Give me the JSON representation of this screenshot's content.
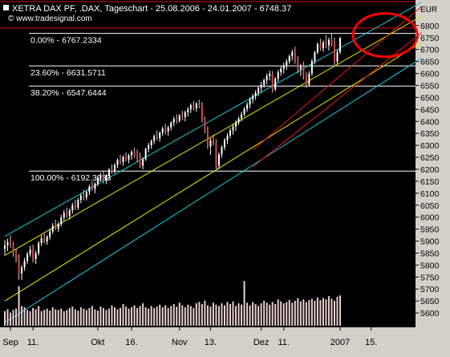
{
  "header": {
    "title": "XETRA DAX PF, .DAX, Tageschart - 25.08.2006 - 24.01.2007 - 6748.37",
    "source": "© www.tradesignal.com",
    "currency": "EUR"
  },
  "chart_data": {
    "type": "candlestick",
    "title": "XETRA DAX PF, .DAX, Tageschart - 25.08.2006 - 24.01.2007 - 6748.37",
    "ylabel": "EUR",
    "ylim": [
      5540,
      6900
    ],
    "y_ticks": [
      5600,
      5650,
      5700,
      5750,
      5800,
      5850,
      5900,
      5950,
      6000,
      6050,
      6100,
      6150,
      6200,
      6250,
      6300,
      6350,
      6400,
      6450,
      6500,
      6550,
      6600,
      6650,
      6700,
      6750,
      6800
    ],
    "x_tick_labels": [
      {
        "label": "Sep",
        "day": 2
      },
      {
        "label": "11.",
        "day": 10
      },
      {
        "label": "Okt",
        "day": 33
      },
      {
        "label": "16.",
        "day": 45
      },
      {
        "label": "Nov",
        "day": 62
      },
      {
        "label": "13.",
        "day": 73
      },
      {
        "label": "Dez",
        "day": 91
      },
      {
        "label": "11.",
        "day": 99
      },
      {
        "label": "2007",
        "day": 119
      },
      {
        "label": "15.",
        "day": 130
      }
    ],
    "fibonacci_levels": [
      {
        "label": "0.00% - 6767.2334",
        "value": 6767.2334
      },
      {
        "label": "23.60% - 6631.5711",
        "value": 6631.5711
      },
      {
        "label": "38.20% - 6547.6444",
        "value": 6547.6444
      },
      {
        "label": "100.00% - 6192.3933",
        "value": 6192.3933
      }
    ],
    "horizontal_lines": [
      6900,
      6790
    ],
    "channels": {
      "outer_cyan": [
        {
          "from": [
            0,
            5920
          ],
          "to": [
            148,
            6898
          ]
        },
        {
          "from": [
            0,
            5560
          ],
          "to": [
            148,
            6665
          ]
        }
      ],
      "inner_yellow": [
        {
          "from": [
            0,
            5840
          ],
          "to": [
            148,
            6840
          ]
        },
        {
          "from": [
            0,
            5650
          ],
          "to": [
            148,
            6730
          ]
        }
      ],
      "red_channel": [
        {
          "from": [
            88,
            6280
          ],
          "to": [
            148,
            6880
          ]
        },
        {
          "from": [
            88,
            6210
          ],
          "to": [
            148,
            6770
          ]
        }
      ]
    },
    "highlight_ellipse": {
      "center": [
        135,
        6760
      ],
      "label": ""
    },
    "candles_ohlc": [
      [
        5868,
        5904,
        5840,
        5882
      ],
      [
        5882,
        5910,
        5858,
        5895
      ],
      [
        5895,
        5925,
        5872,
        5884
      ],
      [
        5884,
        5898,
        5835,
        5848
      ],
      [
        5848,
        5866,
        5810,
        5822
      ],
      [
        5822,
        5845,
        5740,
        5765
      ],
      [
        5765,
        5800,
        5738,
        5790
      ],
      [
        5790,
        5830,
        5776,
        5818
      ],
      [
        5818,
        5855,
        5804,
        5846
      ],
      [
        5846,
        5880,
        5835,
        5865
      ],
      [
        5865,
        5885,
        5810,
        5825
      ],
      [
        5825,
        5860,
        5805,
        5850
      ],
      [
        5850,
        5900,
        5840,
        5892
      ],
      [
        5892,
        5925,
        5880,
        5912
      ],
      [
        5912,
        5935,
        5890,
        5898
      ],
      [
        5898,
        5925,
        5884,
        5918
      ],
      [
        5918,
        5952,
        5906,
        5940
      ],
      [
        5940,
        5975,
        5930,
        5965
      ],
      [
        5965,
        5990,
        5945,
        5952
      ],
      [
        5952,
        5980,
        5938,
        5972
      ],
      [
        5972,
        6010,
        5960,
        5998
      ],
      [
        5998,
        6030,
        5985,
        6018
      ],
      [
        6018,
        6040,
        5998,
        6005
      ],
      [
        6005,
        6035,
        5990,
        6028
      ],
      [
        6028,
        6060,
        6015,
        6050
      ],
      [
        6050,
        6072,
        6030,
        6040
      ],
      [
        6040,
        6080,
        6030,
        6072
      ],
      [
        6072,
        6100,
        6058,
        6090
      ],
      [
        6090,
        6115,
        6070,
        6082
      ],
      [
        6082,
        6112,
        6070,
        6105
      ],
      [
        6105,
        6135,
        6092,
        6128
      ],
      [
        6128,
        6150,
        6110,
        6118
      ],
      [
        6118,
        6145,
        6100,
        6140
      ],
      [
        6140,
        6172,
        6130,
        6165
      ],
      [
        6165,
        6185,
        6150,
        6175
      ],
      [
        6175,
        6195,
        6140,
        6152
      ],
      [
        6152,
        6180,
        6138,
        6172
      ],
      [
        6172,
        6205,
        6160,
        6198
      ],
      [
        6198,
        6220,
        6180,
        6190
      ],
      [
        6190,
        6225,
        6182,
        6218
      ],
      [
        6218,
        6245,
        6205,
        6238
      ],
      [
        6238,
        6260,
        6220,
        6230
      ],
      [
        6230,
        6258,
        6215,
        6252
      ],
      [
        6252,
        6270,
        6232,
        6240
      ],
      [
        6240,
        6265,
        6225,
        6258
      ],
      [
        6258,
        6280,
        6240,
        6272
      ],
      [
        6272,
        6290,
        6248,
        6255
      ],
      [
        6255,
        6282,
        6230,
        6245
      ],
      [
        6245,
        6270,
        6205,
        6215
      ],
      [
        6215,
        6250,
        6200,
        6242
      ],
      [
        6242,
        6290,
        6235,
        6285
      ],
      [
        6285,
        6310,
        6270,
        6300
      ],
      [
        6300,
        6325,
        6285,
        6318
      ],
      [
        6318,
        6345,
        6305,
        6338
      ],
      [
        6338,
        6362,
        6320,
        6330
      ],
      [
        6330,
        6358,
        6315,
        6352
      ],
      [
        6352,
        6378,
        6340,
        6370
      ],
      [
        6370,
        6390,
        6345,
        6358
      ],
      [
        6358,
        6382,
        6340,
        6375
      ],
      [
        6375,
        6400,
        6362,
        6395
      ],
      [
        6395,
        6420,
        6380,
        6410
      ],
      [
        6410,
        6430,
        6390,
        6402
      ],
      [
        6402,
        6430,
        6395,
        6425
      ],
      [
        6425,
        6445,
        6405,
        6418
      ],
      [
        6418,
        6445,
        6400,
        6438
      ],
      [
        6438,
        6460,
        6420,
        6450
      ],
      [
        6450,
        6475,
        6435,
        6468
      ],
      [
        6468,
        6485,
        6445,
        6455
      ],
      [
        6455,
        6480,
        6440,
        6475
      ],
      [
        6475,
        6490,
        6455,
        6465
      ],
      [
        6465,
        6480,
        6395,
        6405
      ],
      [
        6405,
        6420,
        6350,
        6362
      ],
      [
        6362,
        6380,
        6285,
        6295
      ],
      [
        6295,
        6330,
        6260,
        6320
      ],
      [
        6320,
        6345,
        6300,
        6310
      ],
      [
        6310,
        6325,
        6200,
        6215
      ],
      [
        6215,
        6270,
        6200,
        6262
      ],
      [
        6262,
        6300,
        6248,
        6292
      ],
      [
        6292,
        6330,
        6280,
        6322
      ],
      [
        6322,
        6350,
        6305,
        6340
      ],
      [
        6340,
        6372,
        6330,
        6362
      ],
      [
        6362,
        6390,
        6345,
        6378
      ],
      [
        6378,
        6405,
        6360,
        6395
      ],
      [
        6395,
        6420,
        6385,
        6412
      ],
      [
        6412,
        6440,
        6400,
        6430
      ],
      [
        6430,
        6460,
        6420,
        6452
      ],
      [
        6452,
        6480,
        6440,
        6470
      ],
      [
        6470,
        6500,
        6455,
        6492
      ],
      [
        6492,
        6515,
        6475,
        6505
      ],
      [
        6505,
        6530,
        6490,
        6520
      ],
      [
        6520,
        6548,
        6505,
        6540
      ],
      [
        6540,
        6565,
        6520,
        6552
      ],
      [
        6552,
        6580,
        6540,
        6572
      ],
      [
        6572,
        6600,
        6555,
        6590
      ],
      [
        6590,
        6612,
        6570,
        6598
      ],
      [
        6598,
        6610,
        6520,
        6535
      ],
      [
        6535,
        6585,
        6525,
        6578
      ],
      [
        6578,
        6615,
        6565,
        6605
      ],
      [
        6605,
        6630,
        6590,
        6620
      ],
      [
        6620,
        6645,
        6600,
        6632
      ],
      [
        6632,
        6660,
        6615,
        6650
      ],
      [
        6650,
        6680,
        6640,
        6672
      ],
      [
        6672,
        6700,
        6655,
        6690
      ],
      [
        6690,
        6712,
        6640,
        6652
      ],
      [
        6652,
        6672,
        6600,
        6618
      ],
      [
        6618,
        6640,
        6590,
        6630
      ],
      [
        6630,
        6650,
        6575,
        6590
      ],
      [
        6590,
        6605,
        6540,
        6552
      ],
      [
        6552,
        6610,
        6545,
        6600
      ],
      [
        6600,
        6660,
        6590,
        6652
      ],
      [
        6652,
        6695,
        6640,
        6688
      ],
      [
        6688,
        6730,
        6680,
        6722
      ],
      [
        6722,
        6745,
        6695,
        6705
      ],
      [
        6705,
        6738,
        6690,
        6730
      ],
      [
        6730,
        6760,
        6705,
        6718
      ],
      [
        6718,
        6750,
        6695,
        6740
      ],
      [
        6740,
        6768,
        6712,
        6725
      ],
      [
        6725,
        6750,
        6635,
        6650
      ],
      [
        6650,
        6700,
        6640,
        6690
      ],
      [
        6690,
        6752,
        6680,
        6748
      ]
    ],
    "volume_scale": 100,
    "volume": [
      22,
      25,
      20,
      24,
      26,
      60,
      30,
      28,
      24,
      22,
      27,
      25,
      30,
      22,
      24,
      26,
      23,
      28,
      25,
      24,
      26,
      22,
      24,
      27,
      29,
      25,
      23,
      28,
      26,
      24,
      27,
      30,
      25,
      23,
      29,
      27,
      24,
      26,
      31,
      28,
      25,
      27,
      33,
      29,
      26,
      28,
      31,
      27,
      30,
      34,
      28,
      26,
      30,
      27,
      29,
      32,
      28,
      31,
      27,
      30,
      33,
      29,
      35,
      31,
      28,
      32,
      30,
      27,
      34,
      36,
      33,
      38,
      31,
      29,
      35,
      32,
      30,
      34,
      31,
      36,
      33,
      37,
      30,
      34,
      32,
      68,
      35,
      31,
      36,
      33,
      30,
      34,
      38,
      35,
      32,
      36,
      33,
      40,
      37,
      34,
      36,
      39,
      35,
      38,
      42,
      37,
      40,
      36,
      39,
      41,
      38,
      43,
      39,
      42,
      40,
      45,
      41,
      38,
      44,
      46
    ]
  }
}
